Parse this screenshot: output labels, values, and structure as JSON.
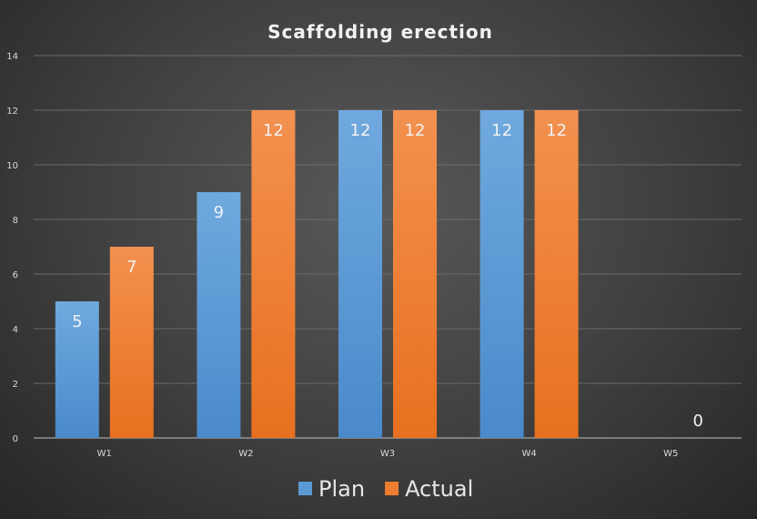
{
  "chart_data": {
    "type": "bar",
    "title": "Scaffolding erection",
    "xlabel": "",
    "ylabel": "",
    "categories": [
      "W1",
      "W2",
      "W3",
      "W4",
      "W5"
    ],
    "series": [
      {
        "name": "Plan",
        "values": [
          5,
          9,
          12,
          12,
          null
        ],
        "color": "#5b9bd5"
      },
      {
        "name": "Actual",
        "values": [
          7,
          12,
          12,
          12,
          0
        ],
        "color": "#ed7d31"
      }
    ],
    "ylim": [
      0,
      14
    ],
    "yticks": [
      0,
      2,
      4,
      6,
      8,
      10,
      12,
      14
    ],
    "grid": true,
    "legend_position": "bottom"
  }
}
